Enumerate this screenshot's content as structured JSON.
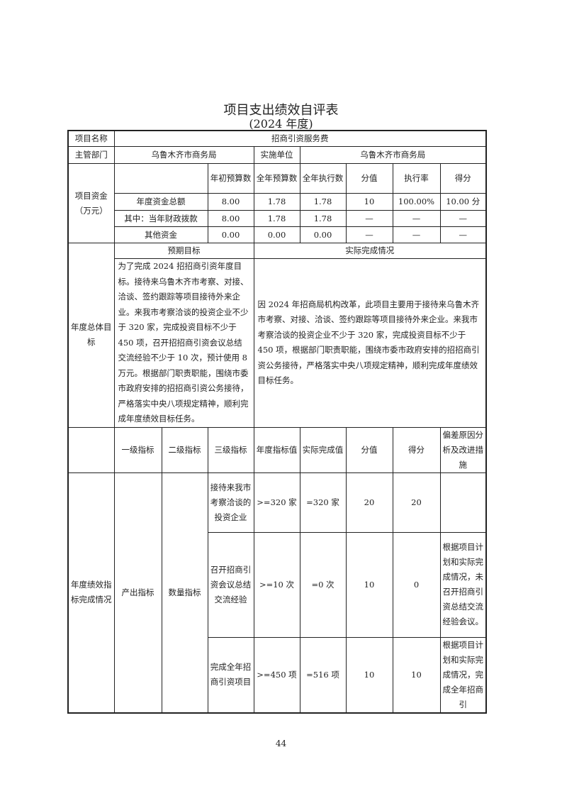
{
  "title": "项目支出绩效自评表",
  "subtitle": "(2024 年度)",
  "project_name_label": "项目名称",
  "project_name": "招商引资服务费",
  "dept_label": "主管部门",
  "dept": "乌鲁木齐市商务局",
  "impl_label": "实施单位",
  "impl": "乌鲁木齐市商务局",
  "funds": {
    "label": "项目资金（万元）",
    "headers": [
      "年初预算数",
      "全年预算数",
      "全年执行数",
      "分值",
      "执行率",
      "得分"
    ],
    "rows": [
      {
        "name": "年度资金总额",
        "values": [
          "8.00",
          "1.78",
          "1.78",
          "10",
          "100.00%",
          "10.00 分"
        ]
      },
      {
        "name": "其中：当年财政拨款",
        "values": [
          "8.00",
          "1.78",
          "1.78",
          "—",
          "—",
          "—"
        ]
      },
      {
        "name": "其他资金",
        "values": [
          "0.00",
          "0.00",
          "0.00",
          "—",
          "—",
          "—"
        ]
      }
    ]
  },
  "goals": {
    "label": "年度总体目标",
    "expected_header": "预期目标",
    "actual_header": "实际完成情况",
    "expected": "为了完成 2024 招招商引资年度目标。接待来乌鲁木齐市考察、对接、洽谈、签约跟踪等项目接待外来企业。来我市考察洽谈的投资企业不少于 320 家，完成投资目标不少于 450 项，召开招招商引资会议总结交流经验不少于 10 次，预计使用 8 万元。根据部门职责职能，围绕市委市政府安排的招招商引资公务接待，严格落实中央八项规定精神，顺利完成年度绩效目标任务。",
    "actual": "因 2024 年招商局机构改革，此项目主要用于接待来乌鲁木齐市考察、对接、洽谈、签约跟踪等项目接待外来企业。来我市考察洽谈的投资企业不少于 320 家，完成投资目标不少于 450 项，根据部门职责职能，围绕市委市政府安排的招招商引资公务接待，严格落实中央八项规定精神，顺利完成年度绩效目标任务。"
  },
  "indicators": {
    "label": "年度绩效指标完成情况",
    "headers": [
      "一级指标",
      "二级指标",
      "三级指标",
      "年度指标值",
      "实际完成值",
      "分值",
      "得分",
      "偏差原因分析及改进措施"
    ],
    "level1": "产出指标",
    "level2": "数量指标",
    "rows": [
      {
        "level3": "接待来我市考察洽谈的投资企业",
        "target": ">=320 家",
        "actual": "=320 家",
        "weight": "20",
        "score": "20",
        "note": ""
      },
      {
        "level3": "召开招商引资会议总结交流经验",
        "target": ">=10 次",
        "actual": "=0 次",
        "weight": "10",
        "score": "0",
        "note": "根据项目计划和实际完成情况，未召开招商引资总结交流经验会议。"
      },
      {
        "level3": "完成全年招商引资项目",
        "target": ">=450 项",
        "actual": "=516 项",
        "weight": "10",
        "score": "10",
        "note": "根据项目计划和实际完成情况，完成全年招商引"
      }
    ]
  },
  "page_number": "44"
}
